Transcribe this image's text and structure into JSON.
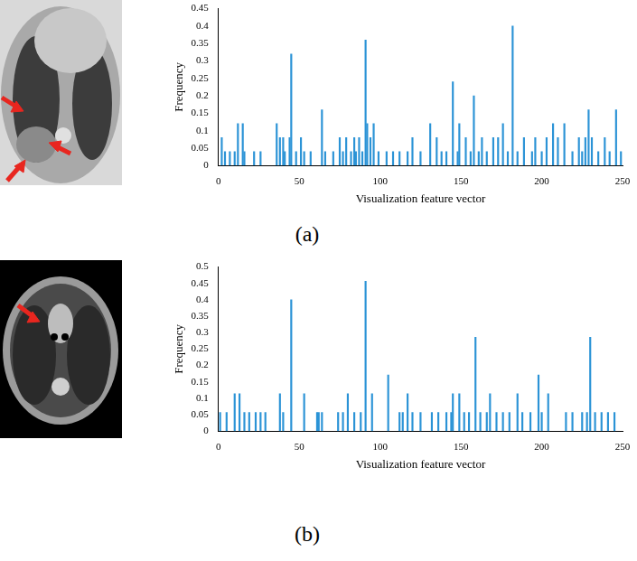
{
  "chart_data": [
    {
      "type": "bar",
      "title": "(a)",
      "xlabel": "Visualization feature vector",
      "ylabel": "Frequency",
      "color": "#2b93d6",
      "grid": false,
      "xlim": [
        0,
        250
      ],
      "xticks": [
        0,
        50,
        100,
        150,
        200,
        250
      ],
      "ylim": [
        0,
        0.45
      ],
      "yticks": [
        0,
        0.05,
        0.1,
        0.15,
        0.2,
        0.25,
        0.3,
        0.35,
        0.4,
        0.45
      ],
      "x": [
        2,
        4,
        7,
        10,
        12,
        15,
        16,
        22,
        26,
        36,
        38,
        40,
        41,
        44,
        45,
        48,
        51,
        53,
        57,
        64,
        66,
        71,
        75,
        77,
        79,
        82,
        84,
        85,
        87,
        89,
        91,
        92,
        94,
        96,
        99,
        104,
        108,
        112,
        117,
        120,
        125,
        131,
        135,
        138,
        141,
        145,
        148,
        149,
        153,
        156,
        158,
        161,
        163,
        166,
        170,
        173,
        176,
        179,
        182,
        185,
        189,
        194,
        196,
        200,
        203,
        207,
        210,
        214,
        219,
        223,
        225,
        227,
        229,
        231,
        235,
        239,
        242,
        246,
        249
      ],
      "values": [
        0.08,
        0.04,
        0.04,
        0.04,
        0.12,
        0.12,
        0.04,
        0.04,
        0.04,
        0.12,
        0.08,
        0.08,
        0.04,
        0.08,
        0.32,
        0.04,
        0.08,
        0.04,
        0.04,
        0.16,
        0.04,
        0.04,
        0.08,
        0.04,
        0.08,
        0.04,
        0.08,
        0.04,
        0.08,
        0.04,
        0.36,
        0.12,
        0.08,
        0.12,
        0.04,
        0.04,
        0.04,
        0.04,
        0.04,
        0.08,
        0.04,
        0.12,
        0.08,
        0.04,
        0.04,
        0.24,
        0.04,
        0.12,
        0.08,
        0.04,
        0.2,
        0.04,
        0.08,
        0.04,
        0.08,
        0.08,
        0.12,
        0.04,
        0.4,
        0.04,
        0.08,
        0.04,
        0.08,
        0.04,
        0.08,
        0.12,
        0.08,
        0.12,
        0.04,
        0.08,
        0.04,
        0.08,
        0.16,
        0.08,
        0.04,
        0.08,
        0.04,
        0.16,
        0.04
      ]
    },
    {
      "type": "bar",
      "title": "(b)",
      "xlabel": "Visualization feature vector",
      "ylabel": "Frequency",
      "color": "#2b93d6",
      "grid": false,
      "xlim": [
        0,
        250
      ],
      "xticks": [
        0,
        50,
        100,
        150,
        200,
        250
      ],
      "ylim": [
        0,
        0.5
      ],
      "yticks": [
        0,
        0.05,
        0.1,
        0.15,
        0.2,
        0.25,
        0.3,
        0.35,
        0.4,
        0.45,
        0.5
      ],
      "x": [
        1,
        5,
        10,
        13,
        16,
        19,
        23,
        26,
        29,
        38,
        40,
        45,
        53,
        61,
        62,
        64,
        74,
        77,
        80,
        84,
        88,
        91,
        95,
        105,
        112,
        114,
        117,
        120,
        125,
        132,
        136,
        141,
        144,
        145,
        149,
        152,
        155,
        159,
        162,
        166,
        168,
        172,
        176,
        180,
        185,
        188,
        193,
        198,
        200,
        204,
        215,
        219,
        225,
        228,
        230,
        233,
        237,
        241,
        245
      ],
      "values": [
        0.057,
        0.057,
        0.114,
        0.114,
        0.057,
        0.057,
        0.057,
        0.057,
        0.057,
        0.114,
        0.057,
        0.4,
        0.114,
        0.057,
        0.057,
        0.057,
        0.057,
        0.057,
        0.114,
        0.057,
        0.057,
        0.457,
        0.114,
        0.171,
        0.057,
        0.057,
        0.114,
        0.057,
        0.057,
        0.057,
        0.057,
        0.057,
        0.057,
        0.114,
        0.114,
        0.057,
        0.057,
        0.286,
        0.057,
        0.057,
        0.114,
        0.057,
        0.057,
        0.057,
        0.114,
        0.057,
        0.057,
        0.171,
        0.057,
        0.114,
        0.057,
        0.057,
        0.057,
        0.057,
        0.286,
        0.057,
        0.057,
        0.057,
        0.057
      ]
    }
  ]
}
